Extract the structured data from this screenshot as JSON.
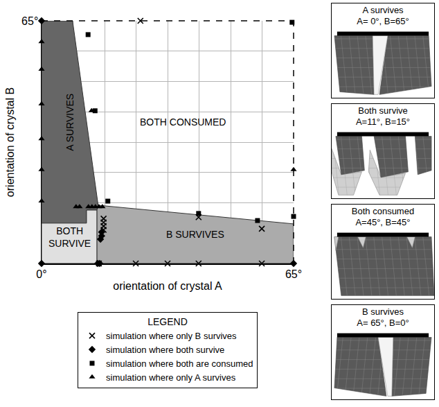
{
  "chart_data": {
    "type": "scatter",
    "x_label": "orientation of crystal A",
    "y_label": "orientation of crystal B",
    "xlim": [
      0,
      65
    ],
    "ylim": [
      0,
      65
    ],
    "xticks": [
      {
        "value": 0,
        "label": "0°"
      },
      {
        "value": 65,
        "label": "65°"
      }
    ],
    "yticks": [
      {
        "value": 65,
        "label": "65°"
      }
    ],
    "grid": true,
    "legend": "bottom",
    "legend_title": "LEGEND",
    "regions": [
      {
        "name": "A SURVIVES",
        "color": "#666666",
        "x": [
          0,
          8,
          14.6,
          14.3,
          11.6,
          11.6,
          0
        ],
        "y": [
          65,
          65,
          15.6,
          14.3,
          14.3,
          10.8,
          10.8
        ]
      },
      {
        "name": "BOTH SURVIVE",
        "color": "#e0e0e0",
        "x": [
          0,
          14.3,
          14.3,
          11.6,
          11.6,
          0
        ],
        "y": [
          0,
          0,
          14.3,
          14.3,
          10.8,
          10.8
        ]
      },
      {
        "name": "B SURVIVES",
        "color": "#ababab",
        "x": [
          14.3,
          65,
          65,
          15.6,
          14.6,
          14.3
        ],
        "y": [
          0,
          0,
          10.6,
          15.4,
          15.6,
          14.3
        ]
      },
      {
        "name": "BOTH CONSUMED",
        "x": [
          8,
          65,
          65,
          15.6,
          14.6
        ],
        "y": [
          65,
          65,
          10.6,
          15.4,
          15.6
        ]
      }
    ],
    "series": [
      {
        "name": "simulation where only B survives",
        "marker": "x",
        "color": "#000000",
        "x": [
          25.5,
          14.8,
          24.3,
          32.5,
          40.5,
          56.8,
          16,
          16,
          16,
          16,
          40.5,
          56.8
        ],
        "y": [
          65,
          0,
          0,
          0,
          0,
          0,
          12,
          11,
          10,
          9,
          12.4,
          9.3
        ]
      },
      {
        "name": "simulation where both survive",
        "marker": "diamond",
        "color": "#000000",
        "x": [
          0,
          0,
          14.5,
          15,
          65,
          15.2,
          15.5,
          15.5
        ],
        "y": [
          65,
          0,
          0,
          0,
          0,
          6.5,
          7.4,
          8.4
        ]
      },
      {
        "name": "simulation where both are consumed",
        "marker": "square",
        "color": "#000000",
        "x": [
          12,
          13.8,
          17.1,
          40.5,
          55.7,
          65,
          64.6
        ],
        "y": [
          61.3,
          40.9,
          16.7,
          13.4,
          11.5,
          12.6,
          64.6
        ]
      },
      {
        "name": "simulation where only A survives",
        "marker": "triangle",
        "color": "#000000",
        "x": [
          0,
          0,
          0,
          0,
          0,
          0,
          8.9,
          9.8,
          12.1,
          13,
          13.9,
          14.8,
          15.7,
          12.9,
          65
        ],
        "y": [
          59.4,
          52,
          42.7,
          33.4,
          25.1,
          16.7,
          15.2,
          15.2,
          15.2,
          15.2,
          15.2,
          15.2,
          15.2,
          40.9,
          25.1
        ]
      }
    ]
  },
  "panels": [
    {
      "title": "A survives",
      "detail": "A= 0°, B=65°"
    },
    {
      "title": "Both survive",
      "detail": "A=11°, B=15°"
    },
    {
      "title": "Both consumed",
      "detail": "A=45°, B=45°"
    },
    {
      "title": "B survives",
      "detail": "A= 65°, B=0°"
    }
  ]
}
